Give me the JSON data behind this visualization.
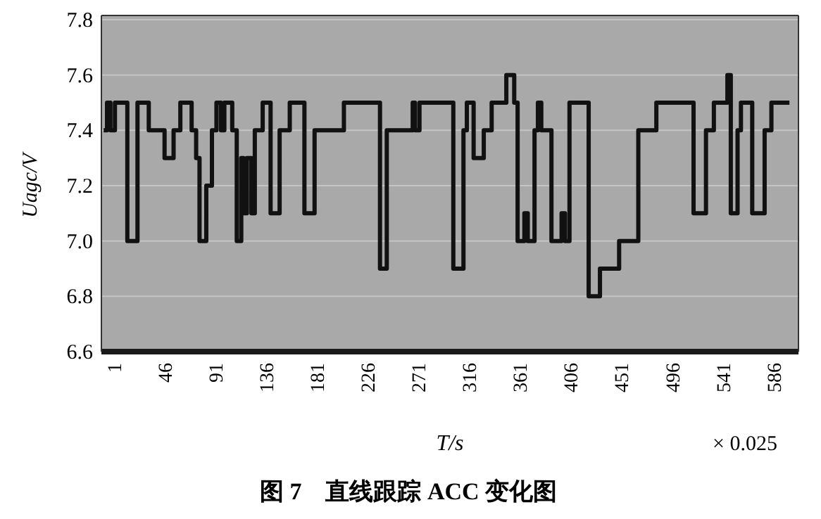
{
  "chart_data": {
    "type": "step",
    "title": "图 7　直线跟踪 ACC 变化图",
    "xlabel": "T/s",
    "ylabel": "Uagc/V",
    "annotations": [
      "× 0.025"
    ],
    "series": [
      {
        "color": "#111111",
        "x": [
          -8,
          -5,
          -2,
          2,
          13,
          22,
          32,
          46,
          54,
          60,
          70,
          74,
          77,
          83,
          88,
          92,
          96,
          99,
          106,
          110,
          114,
          116,
          119,
          123,
          126,
          133,
          140,
          148,
          157,
          170,
          179,
          205,
          237,
          243,
          266,
          268,
          272,
          302,
          311,
          314,
          320,
          329,
          336,
          349,
          356,
          359,
          365,
          368,
          374,
          377,
          380,
          389,
          398,
          401,
          405,
          422,
          432,
          449,
          466,
          482,
          515,
          526,
          533,
          545,
          548,
          554,
          557,
          567,
          578,
          584,
          600
        ],
        "values": [
          7.4,
          7.5,
          7.4,
          7.5,
          7.0,
          7.5,
          7.4,
          7.3,
          7.4,
          7.5,
          7.4,
          7.3,
          7.0,
          7.2,
          7.4,
          7.5,
          7.4,
          7.5,
          7.4,
          7.0,
          7.3,
          7.1,
          7.3,
          7.1,
          7.4,
          7.5,
          7.1,
          7.4,
          7.5,
          7.1,
          7.4,
          7.5,
          6.9,
          7.4,
          7.5,
          7.4,
          7.5,
          6.9,
          7.4,
          7.5,
          7.3,
          7.4,
          7.5,
          7.6,
          7.5,
          7.0,
          7.1,
          7.0,
          7.4,
          7.5,
          7.4,
          7.0,
          7.1,
          7.0,
          7.5,
          6.8,
          6.9,
          7.0,
          7.4,
          7.5,
          7.1,
          7.4,
          7.5,
          7.6,
          7.1,
          7.4,
          7.5,
          7.1,
          7.4,
          7.5,
          7.5
        ]
      }
    ],
    "xlim": [
      -10,
      608
    ],
    "ylim": [
      6.6,
      7.8
    ],
    "xticks": [
      1,
      46,
      91,
      136,
      181,
      226,
      271,
      316,
      361,
      406,
      451,
      496,
      541,
      586
    ],
    "yticks": [
      6.6,
      6.8,
      {
        "value": 7,
        "label": "7.0"
      },
      7.2,
      7.4,
      7.6,
      7.8
    ],
    "grid": "y",
    "line_style": "solid"
  }
}
